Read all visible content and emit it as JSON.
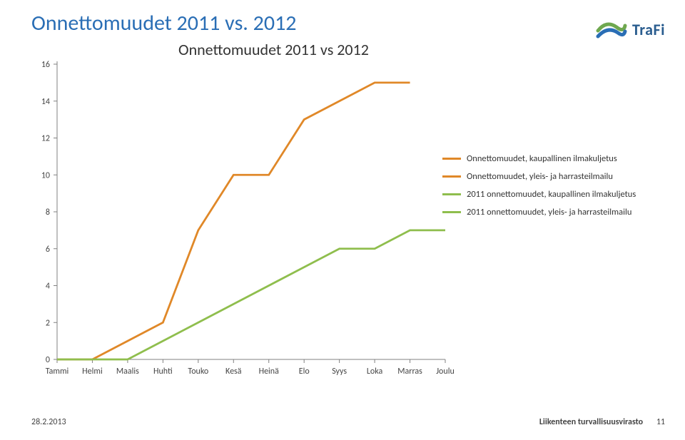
{
  "page_title": "Onnettomuudet 2011 vs. 2012",
  "logo": {
    "brand": "TraFi",
    "mark_colors": [
      "#6fa84f",
      "#2a6eb5"
    ]
  },
  "chart": {
    "type": "line",
    "title": "Onnettomuudet 2011 vs 2012",
    "background_color": "#ffffff",
    "axis_color": "#808080",
    "text_color": "#333333",
    "text_fontsize": 12,
    "title_fontsize": 22,
    "y": {
      "min": 0,
      "max": 16,
      "step": 2
    },
    "categories": [
      "Tammi",
      "Helmi",
      "Maalis",
      "Huhti",
      "Touko",
      "Kesä",
      "Heinä",
      "Elo",
      "Syys",
      "Loka",
      "Marras",
      "Joulu"
    ],
    "series": [
      {
        "name": "Onnettomuudet, kaupallinen ilmakuljetus",
        "color": "#e08828",
        "data": [
          0,
          0,
          1,
          2,
          7,
          10,
          10,
          13,
          14,
          15,
          15,
          null
        ]
      },
      {
        "name": "Onnettomuudet, yleis- ja harrasteilmailu",
        "color": "#e08828",
        "data": [
          null,
          null,
          null,
          null,
          null,
          null,
          null,
          null,
          null,
          null,
          null,
          null
        ]
      },
      {
        "name": "2011 onnettomuudet, kaupallinen ilmakuljetus",
        "color": "#8fbe4d",
        "data": [
          0,
          0,
          0,
          1,
          2,
          3,
          4,
          5,
          6,
          6,
          7,
          7
        ]
      },
      {
        "name": "2011 onnettomuudet, yleis- ja harrasteilmailu",
        "color": "#8fbe4d",
        "data": [
          null,
          null,
          null,
          null,
          null,
          null,
          null,
          null,
          null,
          null,
          null,
          null
        ]
      }
    ],
    "line_width": 2.8
  },
  "footer": {
    "date": "28.2.2013",
    "org": "Liikenteen turvallisuusvirasto",
    "page_number": "11"
  }
}
